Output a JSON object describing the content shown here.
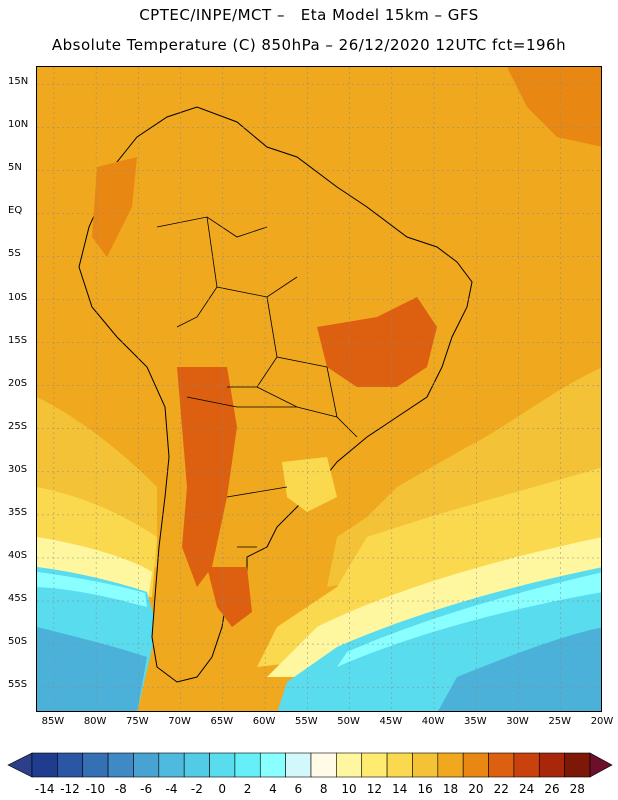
{
  "title": {
    "line1": "CPTEC/INPE/MCT –   Eta Model 15km – GFS",
    "line2": "Absolute Temperature (C) 850hPa – 26/12/2020 12UTC fct=196h"
  },
  "axes": {
    "lat_labels": [
      "15N",
      "10N",
      "5N",
      "EQ",
      "5S",
      "10S",
      "15S",
      "20S",
      "25S",
      "30S",
      "35S",
      "40S",
      "45S",
      "50S",
      "55S"
    ],
    "lon_labels": [
      "85W",
      "80W",
      "75W",
      "70W",
      "65W",
      "60W",
      "55W",
      "50W",
      "45W",
      "40W",
      "35W",
      "30W",
      "25W",
      "20W"
    ],
    "lat_range": [
      -58,
      17
    ],
    "lon_range": [
      -87,
      -20
    ]
  },
  "legend": {
    "labels": [
      "-14",
      "-12",
      "-10",
      "-8",
      "-6",
      "-4",
      "-2",
      "0",
      "2",
      "4",
      "6",
      "8",
      "10",
      "12",
      "14",
      "16",
      "18",
      "20",
      "22",
      "24",
      "26",
      "28"
    ],
    "colors": [
      "#1f3c8e",
      "#2a56a3",
      "#3570b4",
      "#3f89c4",
      "#48a3d2",
      "#4fb9de",
      "#52cbe6",
      "#58dcee",
      "#64f0f6",
      "#8affff",
      "#d2f8fb",
      "#fffbe6",
      "#fff7a0",
      "#ffeb70",
      "#fbd94e",
      "#f4c236",
      "#f0a81e",
      "#e88812",
      "#dc6010",
      "#c9420e",
      "#a8270b",
      "#7d1708"
    ],
    "under_color": "#2b3f8a",
    "over_color": "#6b0f2a"
  },
  "palette": {
    "warm_base": "#f0a81e",
    "hot": "#e88812",
    "very_hot": "#dc6010",
    "mild": "#f4c236",
    "yellow": "#fbd94e",
    "pale_yellow": "#fff7a0",
    "cream": "#fffbe6",
    "pale_cyan": "#d2f8fb",
    "cyan": "#8affff",
    "aqua": "#58dcee",
    "blue": "#48a3d2"
  }
}
